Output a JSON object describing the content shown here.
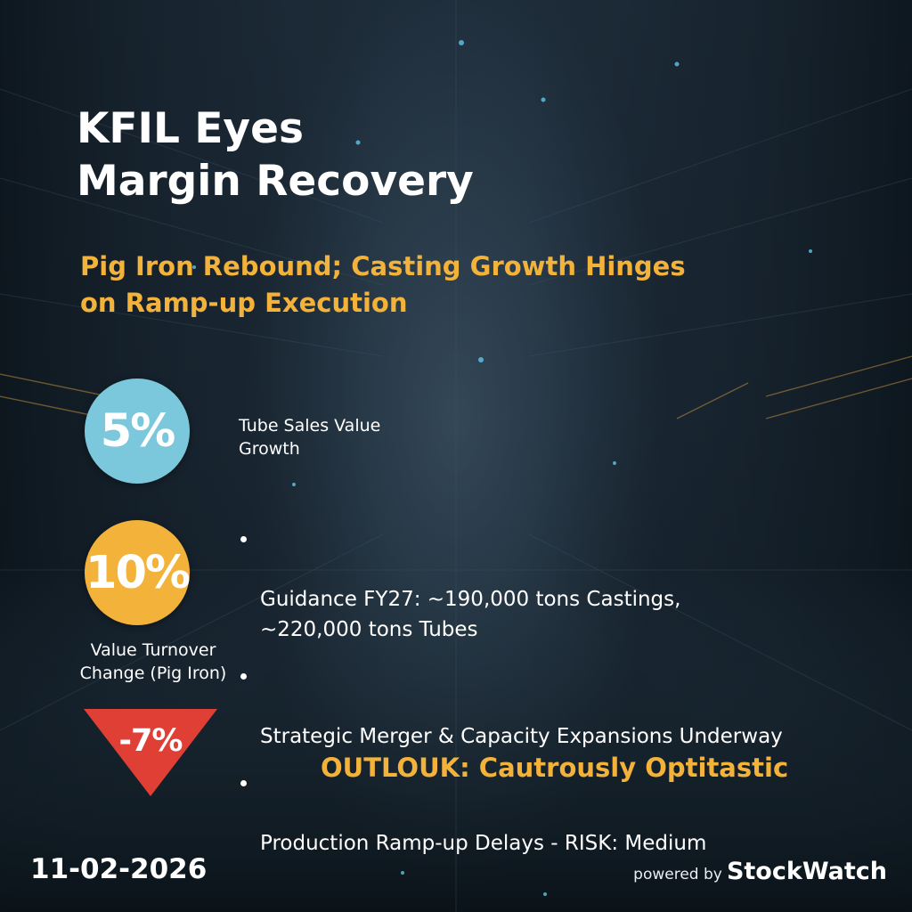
{
  "headline": {
    "title": "KFIL Eyes\nMargin Recovery",
    "subtitle": "Pig Iron Rebound; Casting Growth Hinges\non Ramp-up Execution"
  },
  "stats": [
    {
      "value": "5%",
      "label": "Tube Sales Value\n Growth",
      "color": "#7bc8dc",
      "shape": "circle"
    },
    {
      "value": "10%",
      "label": "Value Turnover\nChange (Pig Iron)",
      "color": "#f3b23a",
      "shape": "circle"
    },
    {
      "value": "-7%",
      "label": "",
      "color": "#df3f35",
      "shape": "triangle-down"
    }
  ],
  "bullets": [
    "Guidance FY27: ~190,000 tons Castings,\n~220,000 tons Tubes",
    "Strategic Merger & Capacity Expansions Underway",
    "Production Ramp-up Delays - RISK: Medium"
  ],
  "outlook": "OUTLOUK: Cautrously Optitastic",
  "footer": {
    "date": "11-02-2026",
    "powered_by": "powered by",
    "brand": "StockWatch"
  },
  "colors": {
    "background": "#1a2733",
    "accent_yellow": "#f3b23a",
    "accent_blue": "#7bc8dc",
    "accent_red": "#df3f35",
    "text": "#ffffff"
  }
}
